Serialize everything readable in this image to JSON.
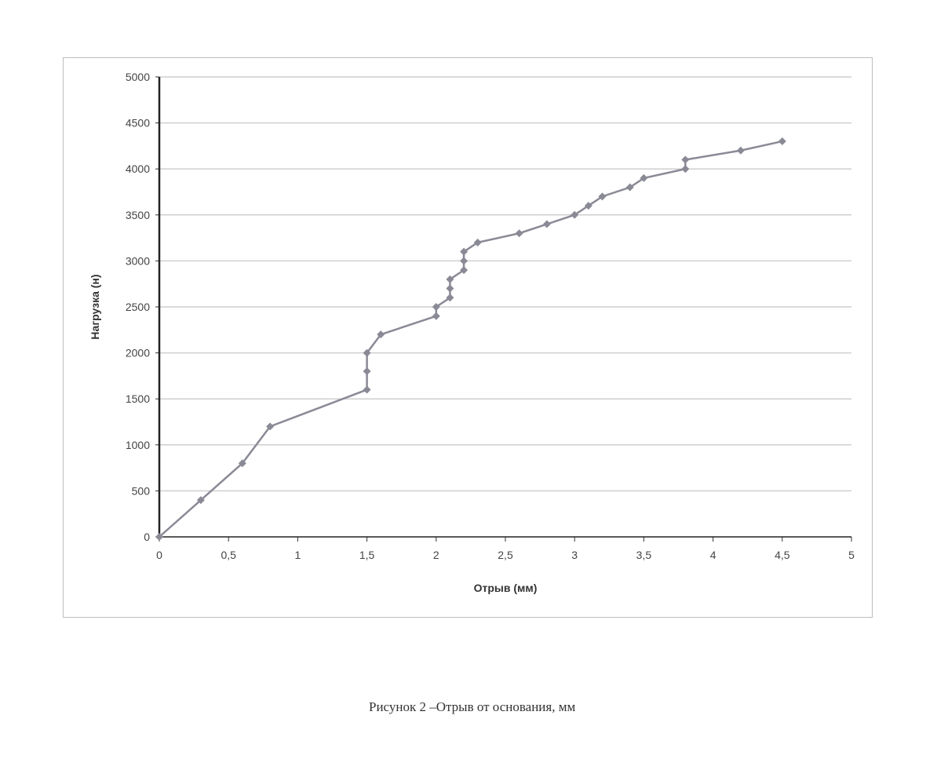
{
  "chart_data": {
    "type": "line",
    "title": "",
    "xlabel": "Отрыв (мм)",
    "ylabel": "Нагрузка (н)",
    "xlim": [
      0,
      5
    ],
    "ylim": [
      0,
      5000
    ],
    "x_ticks": [
      "0",
      "0,5",
      "1",
      "1,5",
      "2",
      "2,5",
      "3",
      "3,5",
      "4",
      "4,5",
      "5"
    ],
    "y_ticks": [
      "0",
      "500",
      "1000",
      "1500",
      "2000",
      "2500",
      "3000",
      "3500",
      "4000",
      "4500",
      "5000"
    ],
    "grid": "horizontal",
    "marker": "diamond",
    "line_color": "#8a8a96",
    "series": [
      {
        "x": [
          0,
          0.3,
          0.6,
          0.8,
          1.5,
          1.5,
          1.5,
          1.6,
          2.0,
          2.0,
          2.1,
          2.1,
          2.1,
          2.2,
          2.2,
          2.2,
          2.3,
          2.6,
          2.8,
          3.0,
          3.1,
          3.2,
          3.4,
          3.5,
          3.8,
          3.8,
          4.2,
          4.5
        ],
        "y": [
          0,
          400,
          800,
          1200,
          1600,
          1800,
          2000,
          2200,
          2400,
          2500,
          2600,
          2700,
          2800,
          2900,
          3000,
          3100,
          3200,
          3300,
          3400,
          3500,
          3600,
          3700,
          3800,
          3900,
          4000,
          4100,
          4200,
          4300
        ]
      }
    ]
  },
  "caption": "Рисунок 2 –Отрыв от основания, мм"
}
